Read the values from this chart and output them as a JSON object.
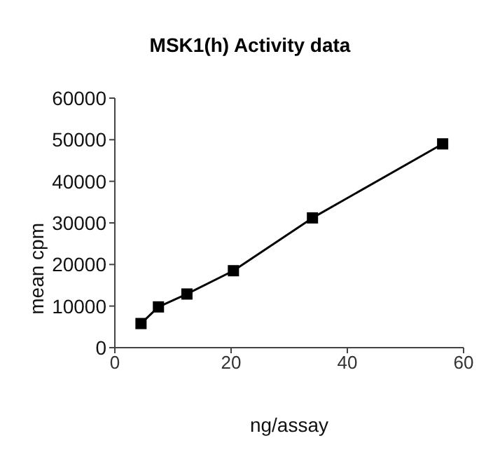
{
  "chart_data": {
    "type": "line",
    "title": "MSK1(h) Activity data",
    "xlabel": "ng/assay",
    "ylabel": "mean cpm",
    "x": [
      4.5,
      7.5,
      12.4,
      20.4,
      34,
      56.4
    ],
    "series": [
      {
        "color": "#000000",
        "values": [
          5800,
          9800,
          12900,
          18500,
          31200,
          49000
        ]
      }
    ],
    "xlim": [
      0,
      60
    ],
    "xticks": [
      0,
      20,
      40,
      60
    ],
    "ylim": [
      0,
      60000
    ],
    "yticks": [
      0,
      10000,
      20000,
      30000,
      40000,
      50000,
      60000
    ],
    "marker": "square",
    "line_style": "solid",
    "grid": false,
    "legend": false
  }
}
